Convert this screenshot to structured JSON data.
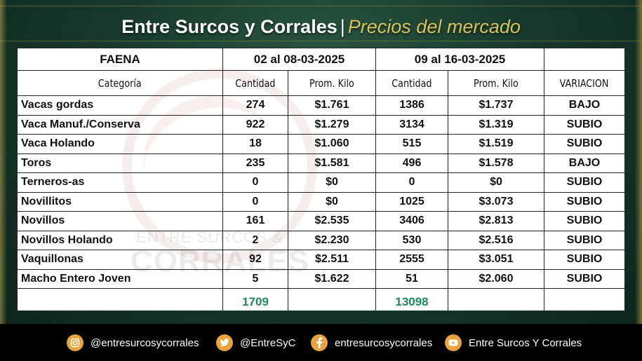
{
  "header": {
    "title": "Entre Surcos y Corrales",
    "separator": "|",
    "subtitle": "Precios del mercado"
  },
  "watermark": {
    "line1": "ENTRE SURCOS &",
    "line2": "CORRALES"
  },
  "table": {
    "faena_label": "FAENA",
    "period1": "02 al 08-03-2025",
    "period2": "09 al 16-03-2025",
    "col_categoria": "Categoría",
    "col_cantidad1": "Cantidad",
    "col_prom1": "Prom. Kilo",
    "col_cantidad2": "Cantidad",
    "col_prom2": "Prom. Kilo",
    "col_variacion": "VARIACION",
    "rows": [
      {
        "categoria": "Vacas gordas",
        "cant1": "274",
        "prom1": "$1.761",
        "cant2": "1386",
        "prom2": "$1.737",
        "variacion": "BAJO"
      },
      {
        "categoria": "Vaca Manuf./Conserva",
        "cant1": "922",
        "prom1": "$1.279",
        "cant2": "3134",
        "prom2": "$1.319",
        "variacion": "SUBIO"
      },
      {
        "categoria": "Vaca Holando",
        "cant1": "18",
        "prom1": "$1.060",
        "cant2": "515",
        "prom2": "$1.519",
        "variacion": "SUBIO"
      },
      {
        "categoria": "Toros",
        "cant1": "235",
        "prom1": "$1.581",
        "cant2": "496",
        "prom2": "$1.578",
        "variacion": "BAJO"
      },
      {
        "categoria": "Terneros-as",
        "cant1": "0",
        "prom1": "$0",
        "cant2": "0",
        "prom2": "$0",
        "variacion": "SUBIO"
      },
      {
        "categoria": "Novillitos",
        "cant1": "0",
        "prom1": "$0",
        "cant2": "1025",
        "prom2": "$3.073",
        "variacion": "SUBIO"
      },
      {
        "categoria": "Novillos",
        "cant1": "161",
        "prom1": "$2.535",
        "cant2": "3406",
        "prom2": "$2.813",
        "variacion": "SUBIO"
      },
      {
        "categoria": "Novillos Holando",
        "cant1": "2",
        "prom1": "$2.230",
        "cant2": "530",
        "prom2": "$2.516",
        "variacion": "SUBIO"
      },
      {
        "categoria": "Vaquillonas",
        "cant1": "92",
        "prom1": "$2.511",
        "cant2": "2555",
        "prom2": "$3.051",
        "variacion": "SUBIO"
      },
      {
        "categoria": "Macho Entero Joven",
        "cant1": "5",
        "prom1": "$1.622",
        "cant2": "51",
        "prom2": "$2.060",
        "variacion": "SUBIO"
      }
    ],
    "total1": "1709",
    "total2": "13098"
  },
  "footer": {
    "instagram": {
      "icon": "instagram-icon",
      "text": "@entresurcosycorrales"
    },
    "twitter": {
      "icon": "twitter-icon",
      "text": "@EntreSyC"
    },
    "facebook": {
      "icon": "facebook-icon",
      "text": "entresurcosycorrales"
    },
    "youtube": {
      "icon": "youtube-icon",
      "text": "Entre Surcos Y Corrales"
    }
  },
  "colors": {
    "accent_gold": "#d8c25a",
    "up": "#18a23a",
    "down": "#d42020",
    "total": "#1e8a55",
    "icon_bg": "#e8a33a"
  }
}
